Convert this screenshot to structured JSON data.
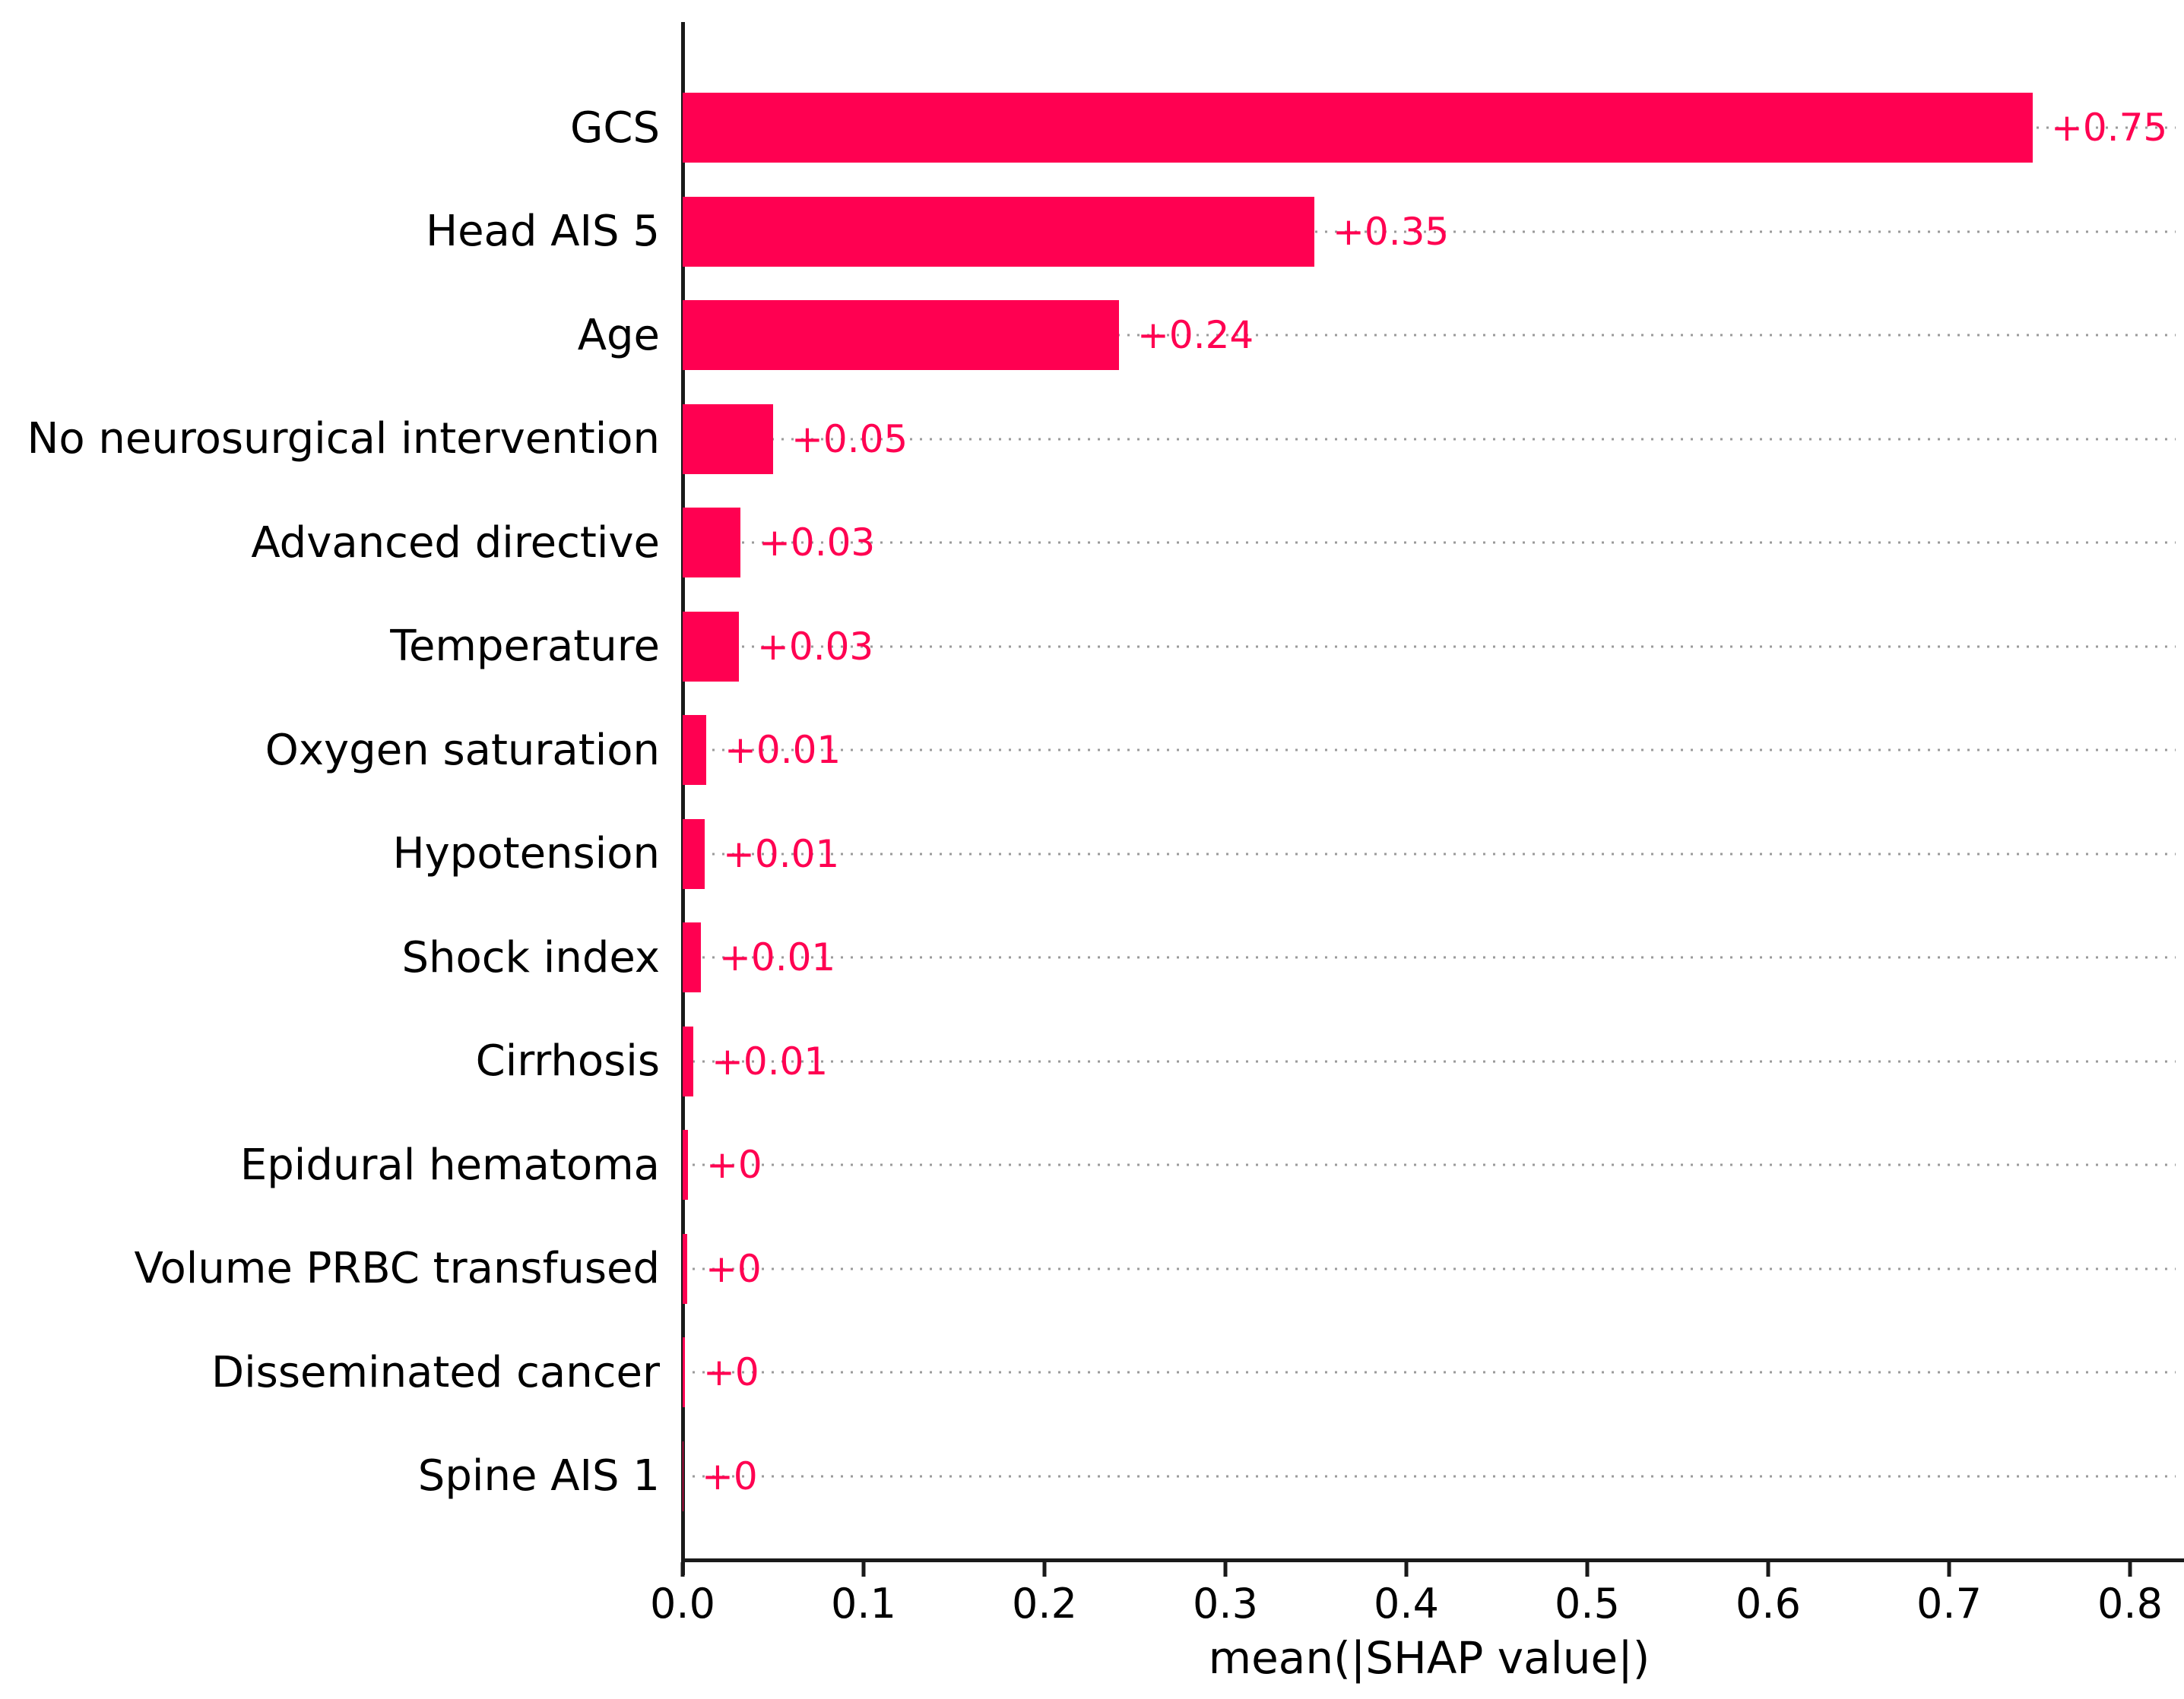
{
  "chart_data": {
    "type": "bar",
    "orientation": "horizontal",
    "title": "",
    "xlabel": "mean(|SHAP value|)",
    "ylabel": "",
    "categories": [
      "GCS",
      "Head AIS 5",
      "Age",
      "No neurosurgical intervention",
      "Advanced directive",
      "Temperature",
      "Oxygen saturation",
      "Hypotension",
      "Shock index",
      "Cirrhosis",
      "Epidural hematoma",
      "Volume PRBC transfused",
      "Disseminated cancer",
      "Spine AIS 1"
    ],
    "values": [
      0.746,
      0.349,
      0.241,
      0.05,
      0.032,
      0.031,
      0.013,
      0.012,
      0.01,
      0.006,
      0.0028,
      0.0025,
      0.0012,
      0.0004
    ],
    "value_labels": [
      "+0.75",
      "+0.35",
      "+0.24",
      "+0.05",
      "+0.03",
      "+0.03",
      "+0.01",
      "+0.01",
      "+0.01",
      "+0.01",
      "+0",
      "+0",
      "+0",
      "+0"
    ],
    "x_ticks": [
      "0.0",
      "0.1",
      "0.2",
      "0.3",
      "0.4",
      "0.5",
      "0.6",
      "0.7",
      "0.8"
    ],
    "xlim": [
      0.0,
      0.825
    ],
    "grid": "horizontal-dotted",
    "legend": "none",
    "bar_color": "#ff0051",
    "value_label_color": "#ff0051",
    "gridline_color": "#9a9a9a",
    "axis_color": "#1a1a1a",
    "text_color": "#000000"
  }
}
